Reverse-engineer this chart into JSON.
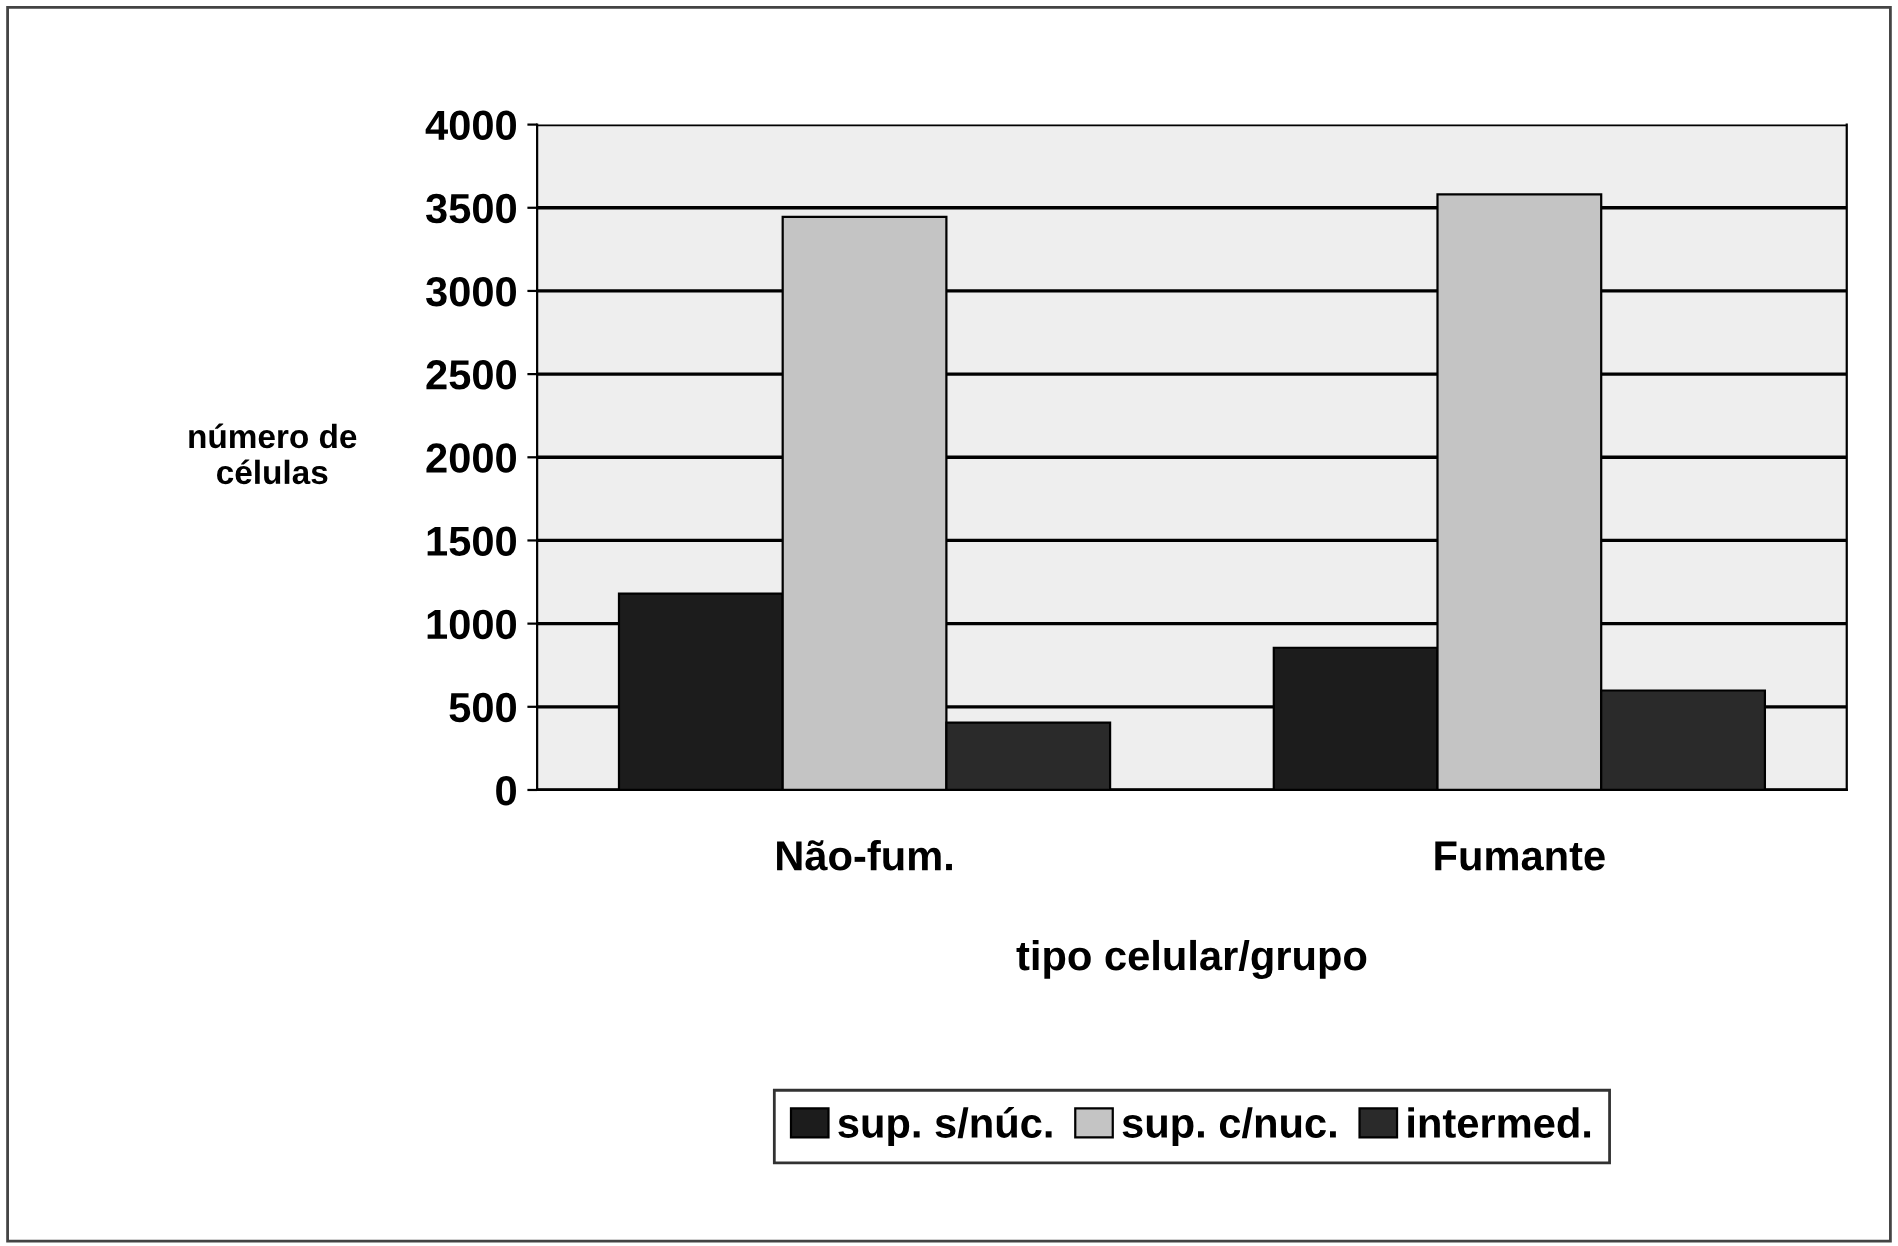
{
  "chart_data": {
    "type": "bar",
    "xlabel": "tipo celular/grupo",
    "ylabel": "número de\ncélulas",
    "categories": [
      "Não-fum.",
      "Fumante"
    ],
    "series": [
      {
        "name": "sup. s/núc.",
        "color": "#1c1c1c",
        "values": [
          1180,
          855
        ]
      },
      {
        "name": "sup. c/nuc.",
        "color": "#c4c4c4",
        "values": [
          3445,
          3580
        ]
      },
      {
        "name": "intermed.",
        "color": "#2a2a2a",
        "values": [
          405,
          598
        ]
      }
    ],
    "ylim": [
      0,
      4000
    ],
    "yticks": [
      0,
      500,
      1000,
      1500,
      2000,
      2500,
      3000,
      3500,
      4000
    ],
    "grid": "y",
    "legend": "bottom"
  }
}
